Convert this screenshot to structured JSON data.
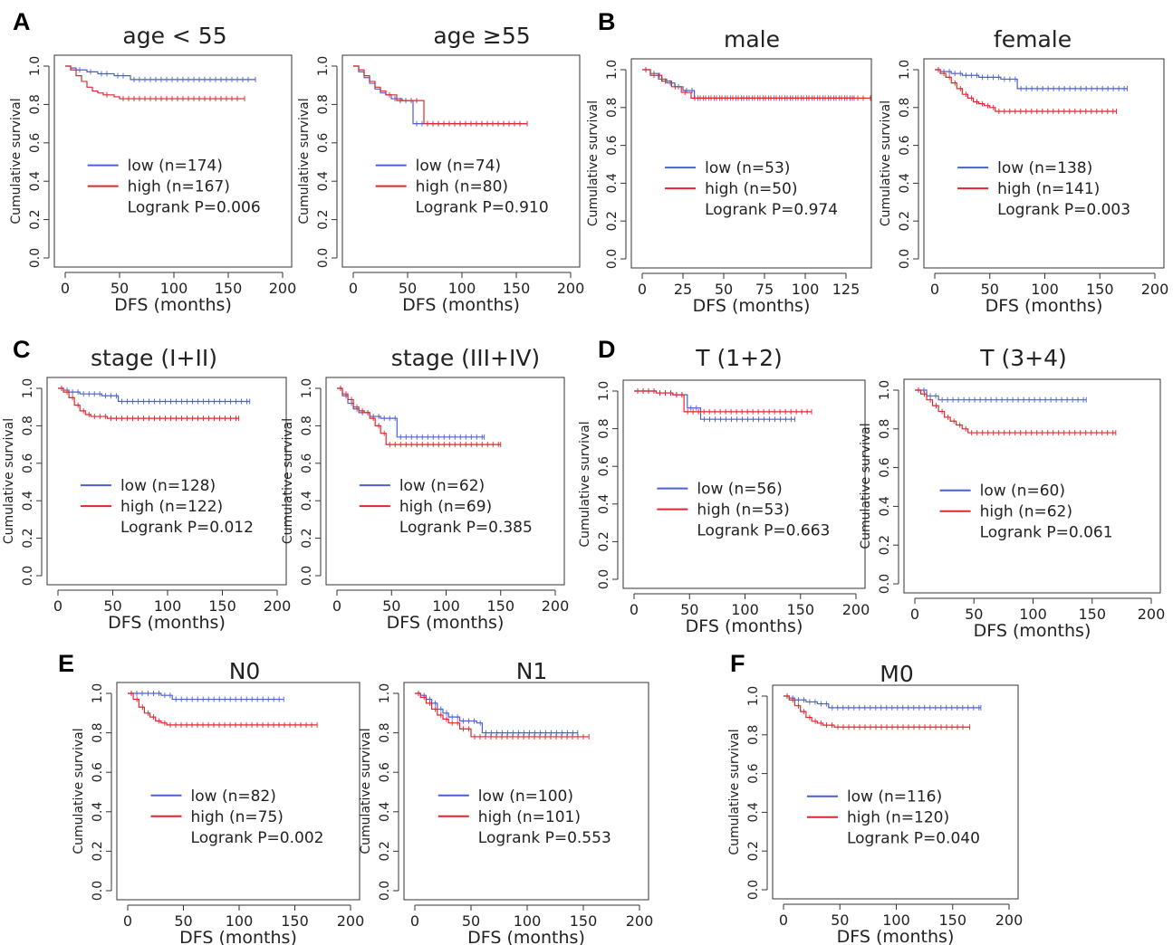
{
  "colors": {
    "low": "#4a5fd6",
    "high": "#e0262c"
  },
  "panels": [
    {
      "letter": "A"
    },
    {
      "letter": "B"
    },
    {
      "letter": "C"
    },
    {
      "letter": "D"
    },
    {
      "letter": "E"
    },
    {
      "letter": "F"
    }
  ],
  "chart_data": [
    {
      "type": "line",
      "panel": "A",
      "title": "age < 55",
      "xlabel": "DFS (months)",
      "ylabel": "Cumulative survival",
      "xticks": [
        0,
        50,
        100,
        150,
        200
      ],
      "xlim": [
        0,
        200
      ],
      "yticks": [
        "0.0",
        "0.2",
        "0.4",
        "0.6",
        "0.8",
        "1.0"
      ],
      "ylim": [
        0,
        1
      ],
      "legend": [
        "low (n=174)",
        "high (n=167)"
      ],
      "annotation": "Logrank P=0.006",
      "series": [
        {
          "name": "low",
          "color": "#4a5fd6",
          "x": [
            0,
            5,
            10,
            20,
            30,
            45,
            60,
            175
          ],
          "y": [
            1.0,
            0.99,
            0.98,
            0.97,
            0.96,
            0.95,
            0.93,
            0.93
          ]
        },
        {
          "name": "high",
          "color": "#e0262c",
          "x": [
            0,
            5,
            10,
            15,
            20,
            25,
            30,
            35,
            45,
            50,
            165
          ],
          "y": [
            1.0,
            0.98,
            0.95,
            0.92,
            0.89,
            0.87,
            0.86,
            0.85,
            0.84,
            0.83,
            0.83
          ]
        }
      ]
    },
    {
      "type": "line",
      "panel": "A",
      "title": "age ≥55",
      "xlabel": "DFS (months)",
      "ylabel": "Cumulative survival",
      "xticks": [
        0,
        50,
        100,
        150,
        200
      ],
      "xlim": [
        0,
        200
      ],
      "yticks": [
        "0.0",
        "0.2",
        "0.4",
        "0.6",
        "0.8",
        "1.0"
      ],
      "ylim": [
        0,
        1
      ],
      "legend": [
        "low (n=74)",
        "high (n=80)"
      ],
      "annotation": "Logrank P=0.910",
      "series": [
        {
          "name": "low",
          "color": "#4a5fd6",
          "x": [
            0,
            5,
            10,
            15,
            20,
            25,
            30,
            35,
            45,
            55,
            160
          ],
          "y": [
            1.0,
            0.97,
            0.94,
            0.91,
            0.88,
            0.86,
            0.85,
            0.83,
            0.82,
            0.7,
            0.7
          ]
        },
        {
          "name": "high",
          "color": "#e0262c",
          "x": [
            0,
            5,
            10,
            15,
            20,
            25,
            30,
            40,
            50,
            65,
            160
          ],
          "y": [
            1.0,
            0.98,
            0.95,
            0.92,
            0.89,
            0.87,
            0.85,
            0.82,
            0.82,
            0.7,
            0.7
          ]
        }
      ]
    },
    {
      "type": "line",
      "panel": "B",
      "title": "male",
      "xlabel": "DFS (months)",
      "ylabel": "Cumulative survival",
      "xticks": [
        0,
        25,
        50,
        75,
        100,
        125
      ],
      "xlim": [
        0,
        135
      ],
      "yticks": [
        "0.0",
        "0.2",
        "0.4",
        "0.6",
        "0.8",
        "1.0"
      ],
      "ylim": [
        0,
        1
      ],
      "legend": [
        "low (n=53)",
        "high (n=50)"
      ],
      "annotation": "Logrank P=0.974",
      "series": [
        {
          "name": "low",
          "color": "#4a5fd6",
          "x": [
            0,
            5,
            10,
            15,
            20,
            25,
            32,
            130
          ],
          "y": [
            1.0,
            0.98,
            0.95,
            0.93,
            0.91,
            0.89,
            0.85,
            0.85
          ]
        },
        {
          "name": "high",
          "color": "#e0262c",
          "x": [
            0,
            5,
            12,
            18,
            24,
            30,
            140
          ],
          "y": [
            1.0,
            0.97,
            0.94,
            0.91,
            0.88,
            0.85,
            0.85
          ]
        }
      ]
    },
    {
      "type": "line",
      "panel": "B",
      "title": "female",
      "xlabel": "DFS (months)",
      "ylabel": "Cumulative survival",
      "xticks": [
        0,
        50,
        100,
        150,
        200
      ],
      "xlim": [
        0,
        200
      ],
      "yticks": [
        "0.0",
        "0.2",
        "0.4",
        "0.6",
        "0.8",
        "1.0"
      ],
      "ylim": [
        0,
        1
      ],
      "legend": [
        "low (n=138)",
        "high (n=141)"
      ],
      "annotation": "Logrank P=0.003",
      "series": [
        {
          "name": "low",
          "color": "#4a5fd6",
          "x": [
            0,
            5,
            15,
            25,
            40,
            60,
            75,
            175
          ],
          "y": [
            1.0,
            0.99,
            0.98,
            0.97,
            0.96,
            0.95,
            0.9,
            0.9
          ]
        },
        {
          "name": "high",
          "color": "#e0262c",
          "x": [
            0,
            5,
            10,
            15,
            20,
            25,
            30,
            35,
            40,
            45,
            50,
            55,
            165
          ],
          "y": [
            1.0,
            0.98,
            0.96,
            0.93,
            0.9,
            0.87,
            0.85,
            0.83,
            0.82,
            0.81,
            0.8,
            0.78,
            0.78
          ]
        }
      ]
    },
    {
      "type": "line",
      "panel": "C",
      "title": "stage (I+II)",
      "xlabel": "DFS (months)",
      "ylabel": "Cumulative survival",
      "xticks": [
        0,
        50,
        100,
        150,
        200
      ],
      "xlim": [
        0,
        200
      ],
      "yticks": [
        "0.0",
        "0.2",
        "0.4",
        "0.6",
        "0.8",
        "1.0"
      ],
      "ylim": [
        0,
        1
      ],
      "legend": [
        "low (n=128)",
        "high (n=122)"
      ],
      "annotation": "Logrank P=0.012",
      "series": [
        {
          "name": "low",
          "color": "#4a5fd6",
          "x": [
            0,
            5,
            10,
            20,
            40,
            55,
            175
          ],
          "y": [
            1.0,
            0.99,
            0.98,
            0.97,
            0.96,
            0.93,
            0.93
          ]
        },
        {
          "name": "high",
          "color": "#e0262c",
          "x": [
            0,
            5,
            10,
            15,
            20,
            25,
            30,
            45,
            165
          ],
          "y": [
            1.0,
            0.98,
            0.95,
            0.91,
            0.88,
            0.86,
            0.85,
            0.84,
            0.84
          ]
        }
      ]
    },
    {
      "type": "line",
      "panel": "C",
      "title": "stage (III+IV)",
      "xlabel": "DFS (months)",
      "ylabel": "Cumulative survival",
      "xticks": [
        0,
        50,
        100,
        150,
        200
      ],
      "xlim": [
        0,
        200
      ],
      "yticks": [
        "0.0",
        "0.2",
        "0.4",
        "0.6",
        "0.8",
        "1.0"
      ],
      "ylim": [
        0,
        1
      ],
      "legend": [
        "low (n=62)",
        "high (n=69)"
      ],
      "annotation": "Logrank P=0.385",
      "series": [
        {
          "name": "low",
          "color": "#4a5fd6",
          "x": [
            0,
            5,
            10,
            15,
            20,
            30,
            40,
            55,
            135
          ],
          "y": [
            1.0,
            0.96,
            0.92,
            0.89,
            0.87,
            0.85,
            0.84,
            0.74,
            0.74
          ]
        },
        {
          "name": "high",
          "color": "#e0262c",
          "x": [
            0,
            5,
            10,
            15,
            20,
            25,
            30,
            35,
            40,
            45,
            150
          ],
          "y": [
            1.0,
            0.97,
            0.94,
            0.9,
            0.88,
            0.87,
            0.84,
            0.8,
            0.76,
            0.7,
            0.7
          ]
        }
      ]
    },
    {
      "type": "line",
      "panel": "D",
      "title": "T (1+2)",
      "xlabel": "DFS (months)",
      "ylabel": "Cumulative survival",
      "xticks": [
        0,
        50,
        100,
        150,
        200
      ],
      "xlim": [
        0,
        200
      ],
      "yticks": [
        "0.0",
        "0.2",
        "0.4",
        "0.6",
        "0.8",
        "1.0"
      ],
      "ylim": [
        0,
        1
      ],
      "legend": [
        "low (n=56)",
        "high (n=53)"
      ],
      "annotation": "Logrank P=0.663",
      "series": [
        {
          "name": "low",
          "color": "#4a5fd6",
          "x": [
            0,
            20,
            35,
            48,
            60,
            145
          ],
          "y": [
            1.0,
            0.99,
            0.98,
            0.91,
            0.85,
            0.85
          ]
        },
        {
          "name": "high",
          "color": "#e0262c",
          "x": [
            0,
            20,
            35,
            45,
            160
          ],
          "y": [
            1.0,
            0.99,
            0.98,
            0.89,
            0.89
          ]
        }
      ]
    },
    {
      "type": "line",
      "panel": "D",
      "title": "T (3+4)",
      "xlabel": "DFS (months)",
      "ylabel": "Cumulative survival",
      "xticks": [
        0,
        50,
        100,
        150,
        200
      ],
      "xlim": [
        0,
        200
      ],
      "yticks": [
        "0.0",
        "0.2",
        "0.4",
        "0.6",
        "0.8",
        "1.0"
      ],
      "ylim": [
        0,
        1
      ],
      "legend": [
        "low (n=60)",
        "high (n=62)"
      ],
      "annotation": "Logrank P=0.061",
      "series": [
        {
          "name": "low",
          "color": "#4a5fd6",
          "x": [
            0,
            10,
            20,
            145
          ],
          "y": [
            1.0,
            0.97,
            0.95,
            0.95
          ]
        },
        {
          "name": "high",
          "color": "#e0262c",
          "x": [
            0,
            5,
            10,
            15,
            20,
            25,
            30,
            35,
            40,
            45,
            170
          ],
          "y": [
            1.0,
            0.98,
            0.95,
            0.92,
            0.89,
            0.86,
            0.84,
            0.82,
            0.8,
            0.78,
            0.78
          ]
        }
      ]
    },
    {
      "type": "line",
      "panel": "E",
      "title": "N0",
      "xlabel": "DFS (months)",
      "ylabel": "Cumulative survival",
      "xticks": [
        0,
        50,
        100,
        150,
        200
      ],
      "xlim": [
        0,
        200
      ],
      "yticks": [
        "0.0",
        "0.2",
        "0.4",
        "0.6",
        "0.8",
        "1.0"
      ],
      "ylim": [
        0,
        1
      ],
      "legend": [
        "low (n=82)",
        "high (n=75)"
      ],
      "annotation": "Logrank P=0.002",
      "series": [
        {
          "name": "low",
          "color": "#4a5fd6",
          "x": [
            0,
            15,
            30,
            40,
            140
          ],
          "y": [
            1.0,
            1.0,
            0.99,
            0.97,
            0.97
          ]
        },
        {
          "name": "high",
          "color": "#e0262c",
          "x": [
            0,
            5,
            10,
            15,
            20,
            25,
            30,
            35,
            170
          ],
          "y": [
            1.0,
            0.97,
            0.93,
            0.9,
            0.88,
            0.86,
            0.85,
            0.84,
            0.84
          ]
        }
      ]
    },
    {
      "type": "line",
      "panel": "E",
      "title": "N1",
      "xlabel": "DFS (months)",
      "ylabel": "Cumulative survival",
      "xticks": [
        0,
        50,
        100,
        150,
        200
      ],
      "xlim": [
        0,
        200
      ],
      "yticks": [
        "0.0",
        "0.2",
        "0.4",
        "0.6",
        "0.8",
        "1.0"
      ],
      "ylim": [
        0,
        1
      ],
      "legend": [
        "low (n=100)",
        "high (n=101)"
      ],
      "annotation": "Logrank P=0.553",
      "series": [
        {
          "name": "low",
          "color": "#4a5fd6",
          "x": [
            0,
            5,
            10,
            15,
            20,
            25,
            30,
            40,
            55,
            60,
            145
          ],
          "y": [
            1.0,
            0.99,
            0.97,
            0.95,
            0.92,
            0.9,
            0.88,
            0.86,
            0.85,
            0.8,
            0.8
          ]
        },
        {
          "name": "high",
          "color": "#e0262c",
          "x": [
            0,
            5,
            10,
            15,
            20,
            25,
            30,
            40,
            50,
            155
          ],
          "y": [
            1.0,
            0.98,
            0.95,
            0.92,
            0.89,
            0.87,
            0.85,
            0.82,
            0.78,
            0.78
          ]
        }
      ]
    },
    {
      "type": "line",
      "panel": "F",
      "title": "M0",
      "xlabel": "DFS (months)",
      "ylabel": "Cumulative survival",
      "xticks": [
        0,
        50,
        100,
        150,
        200
      ],
      "xlim": [
        0,
        200
      ],
      "yticks": [
        "0.0",
        "0.2",
        "0.4",
        "0.6",
        "0.8",
        "1.0"
      ],
      "ylim": [
        0,
        1
      ],
      "legend": [
        "low (n=116)",
        "high (n=120)"
      ],
      "annotation": "Logrank P=0.040",
      "series": [
        {
          "name": "low",
          "color": "#4a5fd6",
          "x": [
            0,
            5,
            10,
            20,
            30,
            40,
            175
          ],
          "y": [
            1.0,
            0.99,
            0.98,
            0.97,
            0.96,
            0.94,
            0.94
          ]
        },
        {
          "name": "high",
          "color": "#e0262c",
          "x": [
            0,
            5,
            10,
            15,
            20,
            25,
            30,
            35,
            45,
            165
          ],
          "y": [
            1.0,
            0.98,
            0.95,
            0.92,
            0.89,
            0.87,
            0.86,
            0.85,
            0.84,
            0.84
          ]
        }
      ]
    }
  ]
}
